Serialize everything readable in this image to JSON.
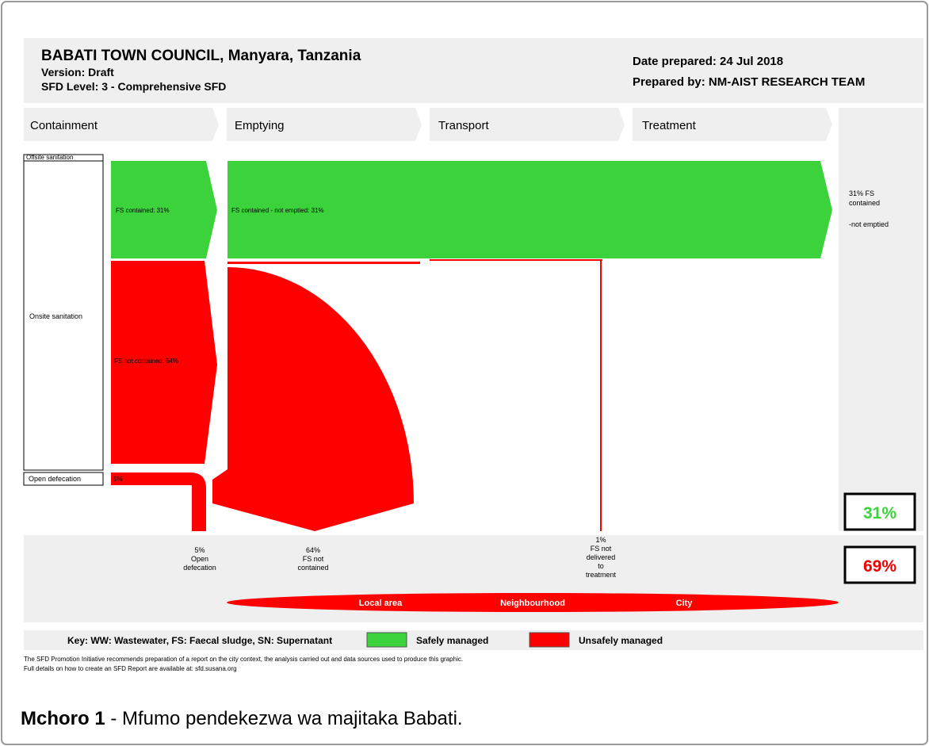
{
  "header": {
    "title": "BABATI TOWN COUNCIL, Manyara, Tanzania",
    "version": "Version: Draft",
    "level": "SFD Level: 3 - Comprehensive SFD",
    "date": "Date prepared: 24 Jul 2018",
    "prepared_by": "Prepared by: NM-AIST RESEARCH TEAM"
  },
  "stages": [
    "Containment",
    "Emptying",
    "Transport",
    "Treatment"
  ],
  "systems": [
    "Offsite sanitation",
    "Onsite sanitation",
    "Open defecation"
  ],
  "flows": {
    "contained": "FS contained: 31%",
    "not_emptied": "FS contained - not emptied: 31%",
    "not_contained": "FS not contained: 64%",
    "open_defecation": "5%"
  },
  "right_note": [
    "31% FS",
    "contained",
    "-not emptied"
  ],
  "totals": {
    "safe": "31%",
    "unsafe": "69%"
  },
  "outcomes": [
    [
      "5%",
      "Open",
      "defecation"
    ],
    [
      "64%",
      "FS not",
      "contained"
    ],
    [
      "1%",
      "FS not",
      "delivered",
      "to",
      "treatment"
    ]
  ],
  "areas": [
    "Local area",
    "Neighbourhood",
    "City"
  ],
  "key": {
    "text": "Key: WW: Wastewater, FS: Faecal sludge, SN: Supernatant",
    "safe": "Safely managed",
    "unsafe": "Unsafely managed"
  },
  "footer": [
    "The SFD Promotion Initiative recommends preparation of a report on the city context, the analysis carried out and data sources used to produce this graphic.",
    "Full details on how to create an SFD Report are available at: sfd.susana.org"
  ],
  "caption": {
    "label": "Mchoro 1",
    "text": " - Mfumo pendekezwa wa majitaka Babati."
  }
}
